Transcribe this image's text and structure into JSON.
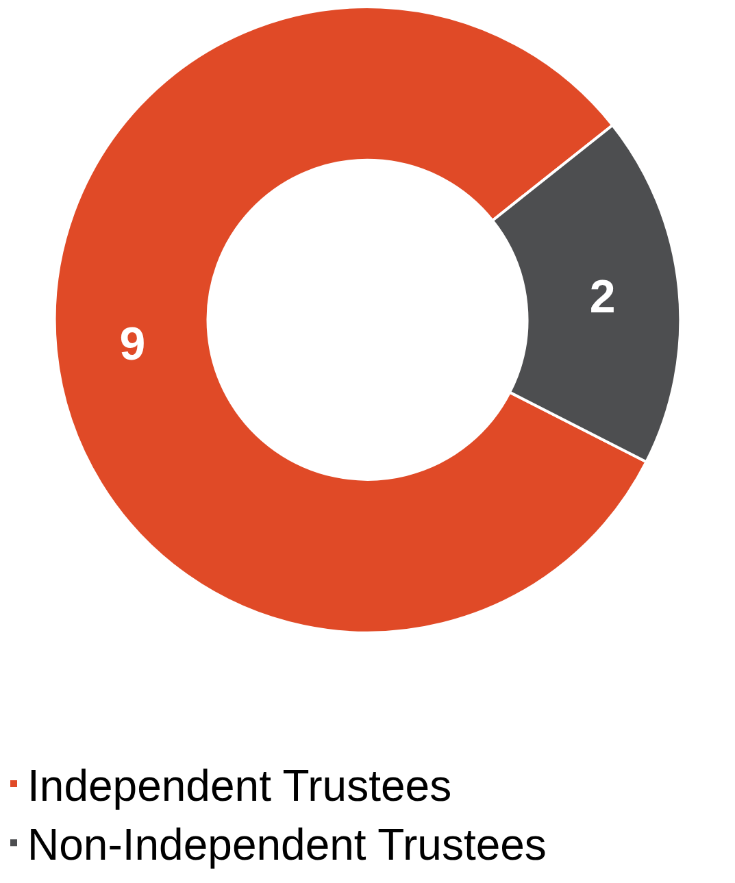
{
  "chart_data": {
    "type": "donut",
    "categories": [
      "Independent Trustees",
      "Non-Independent Trustees"
    ],
    "values": [
      9,
      2
    ],
    "colors": [
      "#e04a27",
      "#4d4e50"
    ],
    "data_labels": true,
    "legend": "bottom"
  }
}
